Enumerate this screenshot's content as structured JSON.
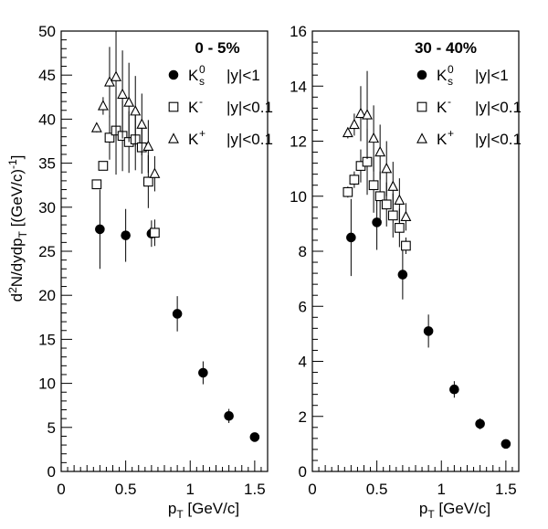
{
  "chart_data": [
    {
      "type": "scatter",
      "panel_label": "0 - 5%",
      "xlabel": "p_T [GeV/c]",
      "ylabel": "d²N/dydp_T [(GeV/c)⁻¹]",
      "xlim": [
        0,
        1.6
      ],
      "ylim": [
        0,
        50
      ],
      "xticks": [
        0,
        0.5,
        1,
        1.5
      ],
      "yticks": [
        0,
        5,
        10,
        15,
        20,
        25,
        30,
        35,
        40,
        45,
        50
      ],
      "legend_position": "top-right",
      "series": [
        {
          "name": "K_s^0 |y|<1",
          "label_main": "K",
          "label_sub": "s",
          "label_sup": "0",
          "label_cut": "|y|<1",
          "marker": "filled-circle",
          "points": [
            {
              "x": 0.3,
              "y": 27.5,
              "err": 4.5
            },
            {
              "x": 0.5,
              "y": 26.8,
              "err": 3.0
            },
            {
              "x": 0.7,
              "y": 27.0,
              "err": 1.5
            },
            {
              "x": 0.9,
              "y": 17.9,
              "err": 2.0
            },
            {
              "x": 1.1,
              "y": 11.2,
              "err": 1.3
            },
            {
              "x": 1.3,
              "y": 6.3,
              "err": 0.8
            },
            {
              "x": 1.5,
              "y": 3.9,
              "err": 0.4
            }
          ]
        },
        {
          "name": "K⁻ |y|<0.1",
          "label_main": "K",
          "label_sub": "",
          "label_sup": "-",
          "label_cut": "|y|<0.1",
          "marker": "open-square",
          "points": [
            {
              "x": 0.275,
              "y": 32.6,
              "err": 0.3
            },
            {
              "x": 0.325,
              "y": 34.7,
              "err": 0.5
            },
            {
              "x": 0.375,
              "y": 37.9,
              "err": 2.5
            },
            {
              "x": 0.425,
              "y": 38.7,
              "err": 5.0
            },
            {
              "x": 0.475,
              "y": 38.1,
              "err": 4.0
            },
            {
              "x": 0.525,
              "y": 37.4,
              "err": 3.5
            },
            {
              "x": 0.575,
              "y": 37.7,
              "err": 3.5
            },
            {
              "x": 0.625,
              "y": 36.8,
              "err": 3.0
            },
            {
              "x": 0.675,
              "y": 32.9,
              "err": 3.0
            },
            {
              "x": 0.725,
              "y": 27.1,
              "err": 1.5
            }
          ]
        },
        {
          "name": "K⁺ |y|<0.1",
          "label_main": "K",
          "label_sub": "",
          "label_sup": "+",
          "label_cut": "|y|<0.1",
          "marker": "open-triangle",
          "points": [
            {
              "x": 0.275,
              "y": 39.0,
              "err": 0.5
            },
            {
              "x": 0.325,
              "y": 41.5,
              "err": 1.0
            },
            {
              "x": 0.375,
              "y": 44.2,
              "err": 4.0
            },
            {
              "x": 0.425,
              "y": 44.8,
              "err": 7.0
            },
            {
              "x": 0.475,
              "y": 42.8,
              "err": 5.0
            },
            {
              "x": 0.525,
              "y": 41.9,
              "err": 4.5
            },
            {
              "x": 0.575,
              "y": 40.9,
              "err": 4.0
            },
            {
              "x": 0.625,
              "y": 39.4,
              "err": 3.5
            },
            {
              "x": 0.675,
              "y": 36.9,
              "err": 3.0
            },
            {
              "x": 0.725,
              "y": 33.8,
              "err": 2.0
            }
          ]
        }
      ]
    },
    {
      "type": "scatter",
      "panel_label": "30 - 40%",
      "xlabel": "p_T [GeV/c]",
      "ylabel": "",
      "xlim": [
        0,
        1.6
      ],
      "ylim": [
        0,
        16
      ],
      "xticks": [
        0,
        0.5,
        1,
        1.5
      ],
      "yticks": [
        0,
        2,
        4,
        6,
        8,
        10,
        12,
        14,
        16
      ],
      "legend_position": "top-right",
      "series": [
        {
          "name": "K_s^0 |y|<1",
          "label_main": "K",
          "label_sub": "s",
          "label_sup": "0",
          "label_cut": "|y|<1",
          "marker": "filled-circle",
          "points": [
            {
              "x": 0.3,
              "y": 8.5,
              "err": 1.4
            },
            {
              "x": 0.5,
              "y": 9.05,
              "err": 1.0
            },
            {
              "x": 0.7,
              "y": 7.15,
              "err": 0.9
            },
            {
              "x": 0.9,
              "y": 5.1,
              "err": 0.6
            },
            {
              "x": 1.1,
              "y": 2.98,
              "err": 0.3
            },
            {
              "x": 1.3,
              "y": 1.73,
              "err": 0.2
            },
            {
              "x": 1.5,
              "y": 1.0,
              "err": 0.1
            }
          ]
        },
        {
          "name": "K⁻ |y|<0.1",
          "label_main": "K",
          "label_sub": "",
          "label_sup": "-",
          "label_cut": "|y|<0.1",
          "marker": "open-square",
          "points": [
            {
              "x": 0.275,
              "y": 10.15,
              "err": 0.2
            },
            {
              "x": 0.325,
              "y": 10.6,
              "err": 0.3
            },
            {
              "x": 0.375,
              "y": 11.1,
              "err": 0.6
            },
            {
              "x": 0.425,
              "y": 11.25,
              "err": 1.2
            },
            {
              "x": 0.475,
              "y": 10.4,
              "err": 1.0
            },
            {
              "x": 0.525,
              "y": 10.0,
              "err": 0.9
            },
            {
              "x": 0.575,
              "y": 9.7,
              "err": 0.8
            },
            {
              "x": 0.625,
              "y": 9.3,
              "err": 0.8
            },
            {
              "x": 0.675,
              "y": 8.85,
              "err": 0.7
            },
            {
              "x": 0.725,
              "y": 8.2,
              "err": 0.3
            }
          ]
        },
        {
          "name": "K⁺ |y|<0.1",
          "label_main": "K",
          "label_sub": "",
          "label_sup": "+",
          "label_cut": "|y|<0.1",
          "marker": "open-triangle",
          "points": [
            {
              "x": 0.275,
              "y": 12.3,
              "err": 0.2
            },
            {
              "x": 0.325,
              "y": 12.6,
              "err": 0.4
            },
            {
              "x": 0.375,
              "y": 13.0,
              "err": 1.0
            },
            {
              "x": 0.425,
              "y": 12.95,
              "err": 1.6
            },
            {
              "x": 0.475,
              "y": 12.1,
              "err": 1.2
            },
            {
              "x": 0.525,
              "y": 11.6,
              "err": 1.0
            },
            {
              "x": 0.575,
              "y": 11.0,
              "err": 1.0
            },
            {
              "x": 0.625,
              "y": 10.35,
              "err": 0.9
            },
            {
              "x": 0.675,
              "y": 9.85,
              "err": 0.8
            },
            {
              "x": 0.725,
              "y": 9.25,
              "err": 0.5
            }
          ]
        }
      ]
    }
  ]
}
